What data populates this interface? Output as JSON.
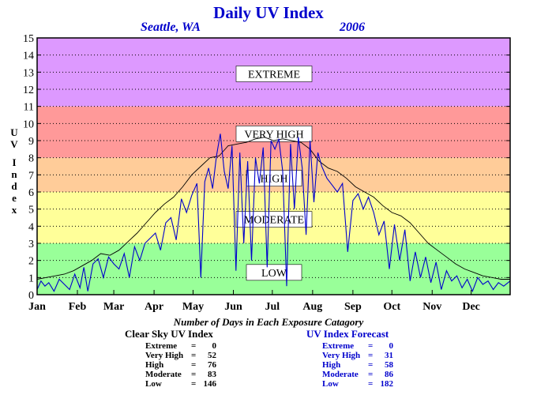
{
  "header": {
    "title": "Daily UV Index",
    "location": "Seattle, WA",
    "year": "2006"
  },
  "chart_data": {
    "type": "line",
    "title": "Daily UV Index",
    "ylabel": "UV Index",
    "ylim": [
      0,
      15
    ],
    "yticks": [
      "0",
      "1",
      "2",
      "3",
      "4",
      "5",
      "6",
      "7",
      "8",
      "9",
      "10",
      "11",
      "12",
      "13",
      "14",
      "15"
    ],
    "months": [
      "Jan",
      "Feb",
      "Mar",
      "Apr",
      "May",
      "Jun",
      "Jul",
      "Aug",
      "Sep",
      "Oct",
      "Nov",
      "Dec"
    ],
    "grid": true,
    "bands": [
      {
        "label": "LOW",
        "from": 0,
        "to": 3,
        "color": "#99ff99"
      },
      {
        "label": "MODERATE",
        "from": 3,
        "to": 6,
        "color": "#ffff99"
      },
      {
        "label": "HIGH",
        "from": 6,
        "to": 8,
        "color": "#ffcc99"
      },
      {
        "label": "VERY HIGH",
        "from": 8,
        "to": 11,
        "color": "#ff9999"
      },
      {
        "label": "EXTREME",
        "from": 11,
        "to": 15,
        "color": "#dd99ff"
      }
    ],
    "series": [
      {
        "name": "Clear Sky UV Index",
        "color": "#000000",
        "x": [
          1,
          8,
          15,
          22,
          29,
          36,
          43,
          50,
          57,
          64,
          71,
          78,
          85,
          92,
          99,
          106,
          113,
          120,
          127,
          134,
          141,
          148,
          155,
          162,
          169,
          176,
          183,
          190,
          197,
          204,
          211,
          218,
          225,
          232,
          239,
          246,
          253,
          260,
          267,
          274,
          281,
          288,
          295,
          302,
          309,
          316,
          323,
          330,
          337,
          344,
          351,
          358,
          365
        ],
        "values": [
          0.9,
          1.0,
          1.1,
          1.2,
          1.4,
          1.7,
          2.0,
          2.4,
          2.3,
          2.6,
          3.1,
          3.6,
          4.2,
          4.8,
          5.3,
          5.7,
          6.3,
          7.0,
          7.5,
          8.0,
          8.1,
          8.7,
          8.8,
          8.9,
          9.1,
          9.2,
          9.0,
          9.1,
          9.0,
          8.9,
          8.5,
          7.8,
          7.4,
          7.2,
          6.8,
          6.3,
          6.0,
          5.7,
          5.2,
          4.8,
          4.6,
          4.2,
          3.6,
          3.0,
          2.6,
          2.2,
          1.8,
          1.5,
          1.3,
          1.1,
          1.0,
          0.9,
          0.9
        ]
      },
      {
        "name": "UV Index Forecast",
        "color": "#0000cc",
        "x": [
          1,
          4,
          7,
          10,
          14,
          18,
          22,
          26,
          30,
          34,
          37,
          40,
          44,
          48,
          52,
          56,
          60,
          64,
          68,
          72,
          76,
          80,
          84,
          88,
          92,
          96,
          100,
          104,
          108,
          112,
          116,
          120,
          124,
          127,
          130,
          133,
          136,
          139,
          142,
          145,
          148,
          151,
          154,
          157,
          160,
          163,
          166,
          169,
          172,
          175,
          178,
          181,
          184,
          187,
          190,
          193,
          196,
          199,
          202,
          205,
          208,
          211,
          214,
          217,
          220,
          224,
          228,
          232,
          236,
          240,
          244,
          248,
          252,
          256,
          260,
          264,
          268,
          272,
          276,
          280,
          284,
          288,
          292,
          296,
          300,
          304,
          308,
          312,
          316,
          320,
          324,
          328,
          332,
          336,
          340,
          344,
          348,
          352,
          356,
          360,
          365
        ],
        "values": [
          0.3,
          0.8,
          0.5,
          0.7,
          0.2,
          0.9,
          0.6,
          0.3,
          1.2,
          0.4,
          1.6,
          0.2,
          1.8,
          2.1,
          1.0,
          2.2,
          1.8,
          1.5,
          2.4,
          1.0,
          2.8,
          2.0,
          3.0,
          3.3,
          3.6,
          2.6,
          4.2,
          4.5,
          3.2,
          5.6,
          4.8,
          5.8,
          6.5,
          1.0,
          6.6,
          7.4,
          6.2,
          8.1,
          9.4,
          7.2,
          6.2,
          8.7,
          1.4,
          8.3,
          3.0,
          7.8,
          2.0,
          8.0,
          6.5,
          8.6,
          1.6,
          9.0,
          8.5,
          9.1,
          7.2,
          0.5,
          8.8,
          5.0,
          9.2,
          7.4,
          3.5,
          9.0,
          5.4,
          8.3,
          7.5,
          6.8,
          6.4,
          6.0,
          6.5,
          2.5,
          5.5,
          5.9,
          5.0,
          5.7,
          4.8,
          3.5,
          4.3,
          1.5,
          4.1,
          2.0,
          3.8,
          0.8,
          2.5,
          1.0,
          2.2,
          0.7,
          1.9,
          0.3,
          1.4,
          0.8,
          1.1,
          0.4,
          0.9,
          0.2,
          1.0,
          0.6,
          0.8,
          0.3,
          0.7,
          0.5,
          0.8
        ]
      }
    ]
  },
  "stats_title": "Number of Days in Each Exposure Catagory",
  "clear_sky": {
    "heading": "Clear Sky UV Index",
    "rows": [
      {
        "label": "Extreme",
        "eq": "=",
        "value": "0"
      },
      {
        "label": "Very High",
        "eq": "=",
        "value": "52"
      },
      {
        "label": "High",
        "eq": "=",
        "value": "76"
      },
      {
        "label": "Moderate",
        "eq": "=",
        "value": "83"
      },
      {
        "label": "Low",
        "eq": "=",
        "value": "146"
      }
    ]
  },
  "forecast": {
    "heading": "UV Index Forecast",
    "rows": [
      {
        "label": "Extreme",
        "eq": "=",
        "value": "0"
      },
      {
        "label": "Very High",
        "eq": "=",
        "value": "31"
      },
      {
        "label": "High",
        "eq": "=",
        "value": "58"
      },
      {
        "label": "Moderate",
        "eq": "=",
        "value": "86"
      },
      {
        "label": "Low",
        "eq": "=",
        "value": "182"
      }
    ]
  }
}
